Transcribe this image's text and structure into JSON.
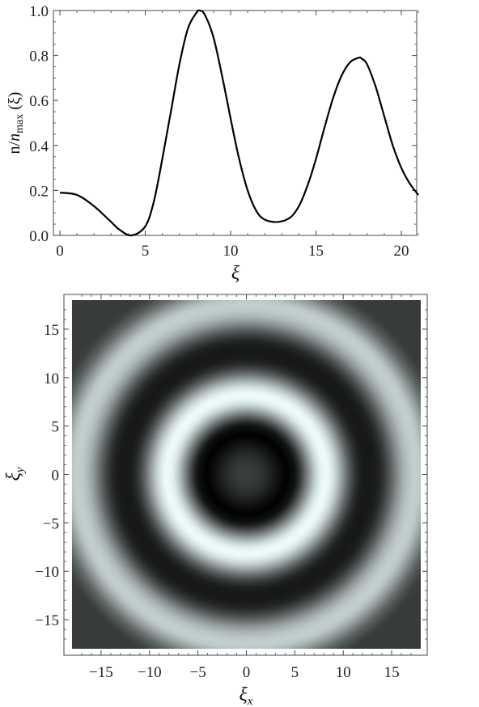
{
  "chart_data": [
    {
      "type": "line",
      "xlabel": "ξ",
      "ylabel": {
        "n": "n/",
        "italic": "n",
        "sub": "max",
        "arg": " (ξ)"
      },
      "xlim": [
        0,
        21.5
      ],
      "ylim": [
        0,
        1
      ],
      "xticks": [
        0,
        5,
        10,
        15,
        20
      ],
      "xtick_labels": [
        "0",
        "5",
        "10",
        "15",
        "20"
      ],
      "yticks": [
        0,
        0.2,
        0.4,
        0.6,
        0.8,
        1.0
      ],
      "ytick_labels": [
        "0.0",
        "0.2",
        "0.4",
        "0.6",
        "0.8",
        "1.0"
      ],
      "grid": false,
      "series": [
        {
          "x": [
            0,
            1,
            2,
            3,
            3.5,
            4.2,
            5,
            5.5,
            6,
            6.5,
            7,
            7.5,
            8,
            8.2,
            8.5,
            9,
            9.5,
            10,
            10.5,
            11,
            11.5,
            12,
            12.8,
            13.5,
            14,
            14.5,
            15,
            15.5,
            16,
            16.5,
            17,
            17.5,
            17.7,
            18,
            18.5,
            19,
            19.5,
            20,
            20.5,
            21
          ],
          "y": [
            0.19,
            0.18,
            0.13,
            0.06,
            0.025,
            0.0,
            0.04,
            0.15,
            0.34,
            0.55,
            0.76,
            0.92,
            0.99,
            1.0,
            0.98,
            0.88,
            0.71,
            0.52,
            0.34,
            0.2,
            0.11,
            0.07,
            0.06,
            0.08,
            0.13,
            0.22,
            0.34,
            0.48,
            0.61,
            0.71,
            0.77,
            0.79,
            0.785,
            0.76,
            0.66,
            0.53,
            0.4,
            0.3,
            0.23,
            0.18
          ]
        }
      ]
    },
    {
      "type": "heatmap",
      "xlabel": {
        "base": "ξ",
        "sub": "x"
      },
      "ylabel": {
        "base": "ξ",
        "sub": "y"
      },
      "xlim": [
        -18,
        18
      ],
      "ylim": [
        -18,
        18
      ],
      "xticks": [
        -15,
        -10,
        -5,
        0,
        5,
        10,
        15
      ],
      "xtick_labels": [
        "−15",
        "−10",
        "−5",
        "0",
        "5",
        "10",
        "15"
      ],
      "yticks": [
        -15,
        -10,
        -5,
        0,
        5,
        10,
        15
      ],
      "ytick_labels": [
        "−15",
        "−10",
        "−5",
        "0",
        "5",
        "10",
        "15"
      ],
      "colormap": {
        "low": "#000000",
        "high": "#eefcfc"
      },
      "radial_profile_source": "same n(ξ) as line plot, r = sqrt(ξx²+ξy²)"
    }
  ]
}
